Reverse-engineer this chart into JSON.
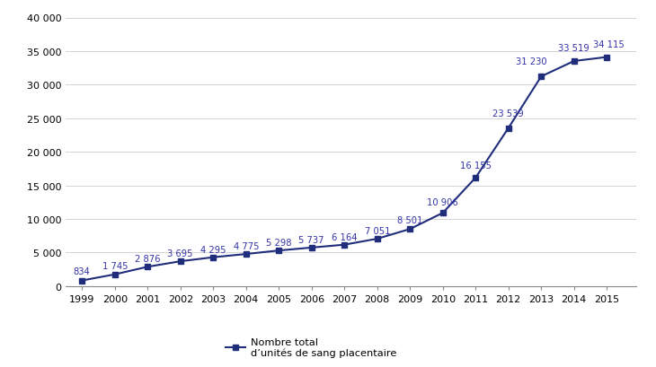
{
  "years": [
    1999,
    2000,
    2001,
    2002,
    2003,
    2004,
    2005,
    2006,
    2007,
    2008,
    2009,
    2010,
    2011,
    2012,
    2013,
    2014,
    2015
  ],
  "values": [
    834,
    1745,
    2876,
    3695,
    4295,
    4775,
    5298,
    5737,
    6164,
    7051,
    8501,
    10906,
    16155,
    23539,
    31230,
    33519,
    34115
  ],
  "labels": [
    "834",
    "1 745",
    "2 876",
    "3 695",
    "4 295",
    "4 775",
    "5 298",
    "5 737",
    "6 164",
    "7 051",
    "8 501",
    "10 906",
    "16 155",
    "23 539",
    "31 230",
    "33 519",
    "34 115"
  ],
  "line_color": "#1F2D7B",
  "marker": "s",
  "marker_size": 4,
  "line_width": 1.5,
  "ylim": [
    0,
    40000
  ],
  "yticks": [
    0,
    5000,
    10000,
    15000,
    20000,
    25000,
    30000,
    35000,
    40000
  ],
  "ytick_labels": [
    "0",
    "5 000",
    "10 000",
    "15 000",
    "20 000",
    "25 000",
    "30 000",
    "35 000",
    "40 000"
  ],
  "legend_label_line1": "Nombre total",
  "legend_label_line2": "d’unités de sang placentaire",
  "background_color": "#ffffff",
  "label_fontsize": 7.2,
  "axis_fontsize": 8.0,
  "label_color": "#3333aa"
}
